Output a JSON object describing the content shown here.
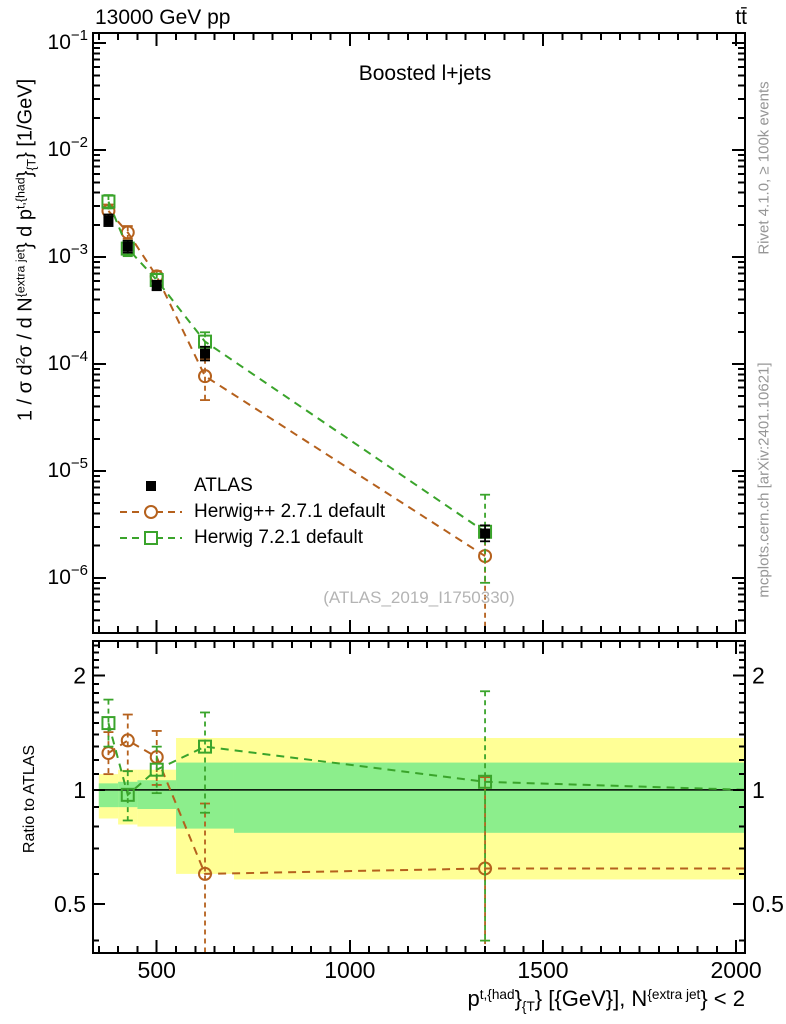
{
  "header": {
    "left": "13000 GeV pp",
    "right": "tt̄"
  },
  "panel_title": "Boosted l+jets",
  "watermark": "(ATLAS_2019_I1750330)",
  "side_notes": {
    "top_right": "Rivet 4.1.0, ≥ 100k events",
    "bottom_right": "mcplots.cern.ch [arXiv:2401.10621]"
  },
  "colors": {
    "atlas": "#000000",
    "herwigpp": "#b5611d",
    "herwig7": "#3aa42b",
    "band_yellow": "#ffff96",
    "band_green": "#8cee8c",
    "gray_text": "#969696",
    "watermark_gray": "#b4b4b4"
  },
  "legend": [
    {
      "label": "ATLAS",
      "marker": "filled-square",
      "series": "atlas"
    },
    {
      "label": "Herwig++ 2.7.1 default",
      "marker": "open-circle",
      "series": "herwigpp"
    },
    {
      "label": "Herwig 7.2.1 default",
      "marker": "open-square",
      "series": "herwig7"
    }
  ],
  "axes": {
    "x_range": [
      335,
      2023
    ],
    "x_ticks": [
      {
        "v": 500,
        "label": "500"
      },
      {
        "v": 1000,
        "label": "1000"
      },
      {
        "v": 1500,
        "label": "1500"
      },
      {
        "v": 2000,
        "label": "2000"
      }
    ],
    "x_minor": {
      "from": 350,
      "to": 2000,
      "step": 50
    },
    "y_range_exp": [
      -0.905,
      -6.515
    ],
    "y_ticks_exp": [
      -1,
      -2,
      -3,
      -4,
      -5,
      -6
    ],
    "ratio_range": [
      0.371,
      2.47
    ],
    "ratio_ticks": [
      {
        "v": 2,
        "label": "2"
      },
      {
        "v": 1,
        "label": "1"
      },
      {
        "v": 0.5,
        "label": "0.5"
      }
    ],
    "ratio_minor": [
      0.4,
      0.6,
      0.7,
      0.8,
      0.9,
      1.1,
      1.2,
      1.3,
      1.4,
      1.5,
      1.6,
      1.7,
      1.8,
      1.9,
      2.1,
      2.2,
      2.3,
      2.4
    ],
    "ratio_label": "Ratio to ATLAS",
    "y_label_parts": [
      {
        "t": "1 / σ d"
      },
      {
        "t": "2",
        "s": "sup"
      },
      {
        "t": "σ / d N"
      },
      {
        "t": "{extra jet",
        "s": "sup"
      },
      {
        "t": "}"
      },
      {
        "t": " d p"
      },
      {
        "t": "t,{had",
        "s": "sup"
      },
      {
        "t": "}"
      },
      {
        "t": "{T",
        "s": "sub"
      },
      {
        "t": "} [1/GeV]"
      }
    ],
    "x_label_parts": [
      {
        "t": "p"
      },
      {
        "t": "t,{had",
        "s": "sup"
      },
      {
        "t": "}"
      },
      {
        "t": "{T",
        "s": "sub"
      },
      {
        "t": "} [{GeV}], N"
      },
      {
        "t": "{extra jet",
        "s": "sup"
      },
      {
        "t": "} < 2"
      }
    ]
  },
  "chart_data": {
    "type": "scatter",
    "title": "Boosted l+jets",
    "x": [
      375,
      425,
      500,
      625,
      1350
    ],
    "bin_edges": [
      350,
      400,
      450,
      550,
      700,
      2000
    ],
    "xlabel": "p^{t,{had}}_{T} [{GeV}], N^{extra jet} < 2",
    "ylabel": "1 / σ d²σ / d N^{extra jet} d p^{t,{had}}_{T} [1/GeV]",
    "yscale": "log",
    "series": [
      {
        "name": "ATLAS",
        "key": "atlas",
        "marker": "filled-square",
        "dashed": false,
        "values": [
          0.0022,
          0.00125,
          0.00054,
          0.000125,
          2.6e-06
        ],
        "err_lo": [
          0.00195,
          0.0011,
          0.00049,
          0.000108,
          2.2e-06
        ],
        "err_hi": [
          0.0025,
          0.00142,
          0.0006,
          0.000145,
          3.1e-06
        ]
      },
      {
        "name": "Herwig++ 2.7.1 default",
        "key": "herwigpp",
        "marker": "open-circle",
        "dashed": true,
        "values": [
          0.0027,
          0.0017,
          0.00066,
          7.7e-05,
          1.6e-06
        ],
        "err_lo": [
          0.00235,
          0.00148,
          0.00059,
          4.6e-05,
          2.5e-07
        ],
        "err_hi": [
          0.0031,
          0.00195,
          0.00074,
          0.000112,
          2.7e-06
        ]
      },
      {
        "name": "Herwig 7.2.1 default",
        "key": "herwig7",
        "marker": "open-square",
        "dashed": true,
        "values": [
          0.0033,
          0.0012,
          0.00061,
          0.000162,
          2.7e-06
        ],
        "err_lo": [
          0.00285,
          0.00102,
          0.00054,
          0.000132,
          9e-07
        ],
        "err_hi": [
          0.0038,
          0.00142,
          0.0007,
          0.000198,
          6e-06
        ]
      }
    ],
    "ratio": {
      "label": "Ratio to ATLAS",
      "baseline": 1,
      "bands": [
        {
          "xlo": 350,
          "xhi": 400,
          "yellow": [
            0.84,
            1.1
          ],
          "green": [
            0.9,
            1.04
          ]
        },
        {
          "xlo": 400,
          "xhi": 450,
          "yellow": [
            0.81,
            1.13
          ],
          "green": [
            0.9,
            1.05
          ]
        },
        {
          "xlo": 450,
          "xhi": 550,
          "yellow": [
            0.8,
            1.13
          ],
          "green": [
            0.89,
            1.06
          ]
        },
        {
          "xlo": 550,
          "xhi": 700,
          "yellow": [
            0.6,
            1.37
          ],
          "green": [
            0.79,
            1.18
          ]
        },
        {
          "xlo": 700,
          "xhi": 2023,
          "yellow": [
            0.58,
            1.37
          ],
          "green": [
            0.77,
            1.18
          ]
        }
      ],
      "series": [
        {
          "key": "herwigpp",
          "marker": "open-circle",
          "values": [
            1.25,
            1.35,
            1.22,
            0.6,
            0.62
          ],
          "err_lo": [
            1.1,
            1.12,
            1.03,
            0.37,
            0.37
          ],
          "err_hi": [
            1.42,
            1.58,
            1.43,
            0.92,
            1.08
          ],
          "tail": 0.62
        },
        {
          "key": "herwig7",
          "marker": "open-square",
          "values": [
            1.5,
            0.97,
            1.13,
            1.3,
            1.05
          ],
          "err_lo": [
            1.3,
            0.83,
            0.98,
            0.87,
            0.4
          ],
          "err_hi": [
            1.73,
            1.12,
            1.3,
            1.6,
            1.82
          ],
          "tail": 1.0
        }
      ]
    }
  }
}
